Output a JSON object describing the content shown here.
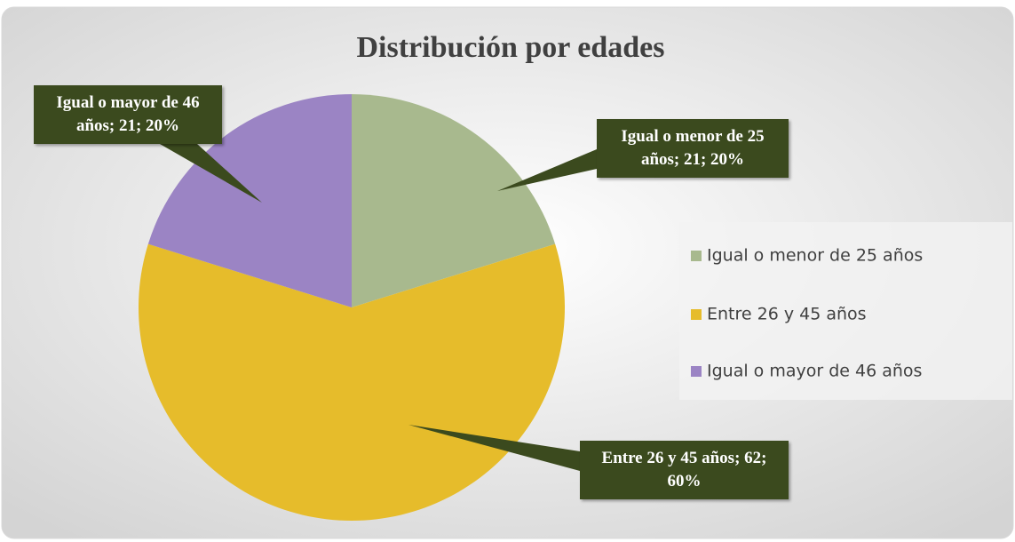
{
  "chart_data": {
    "type": "pie",
    "title": "Distribución por edades",
    "categories": [
      "Igual o menor de 25 años",
      "Entre 26 y 45 años",
      "Igual o mayor de 46 años"
    ],
    "values": [
      21,
      62,
      21
    ],
    "value_labels": [
      "Igual o menor de 25 años; 21; 20%",
      "Entre 26 y 45 años; 62; 60%",
      "Igual o mayor de 46 años; 21; 20%"
    ],
    "colors": [
      "#a8b98e",
      "#e6bc2b",
      "#9b84c4"
    ],
    "legend": "right"
  }
}
